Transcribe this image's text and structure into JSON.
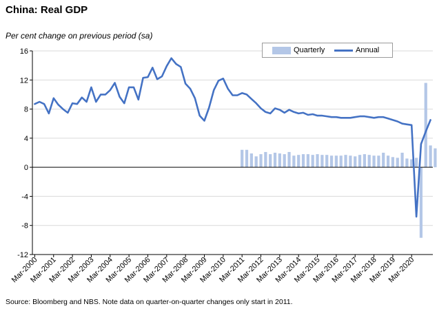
{
  "title": "China: Real GDP",
  "subtitle": "Per cent change on previous period (sa)",
  "source": "Source: Bloomberg and NBS.  Note data on quarter-on-quarter changes only start in 2011.",
  "colors": {
    "annual": "#4472c4",
    "quarterly": "#b4c7e7",
    "grid": "#d9d9d9",
    "axis": "#000000"
  },
  "chart_data": {
    "type": "bar+line",
    "ylim": [
      -12,
      16
    ],
    "yticks": [
      16,
      12,
      8,
      4,
      0,
      -4,
      -8,
      -12
    ],
    "x_start_year": 2000,
    "x_tick_labels": [
      "Mar-2000",
      "Mar-2001",
      "Mar-2002",
      "Mar-2003",
      "Mar-2004",
      "Mar-2005",
      "Mar-2006",
      "Mar-2007",
      "Mar-2008",
      "Mar-2009",
      "Mar-2010",
      "Mar-2011",
      "Mar-2012",
      "Mar-2013",
      "Mar-2014",
      "Mar-2015",
      "Mar-2016",
      "Mar-2017",
      "Mar-2018",
      "Mar-2019",
      "Mar-2020"
    ],
    "grid": true,
    "legend_position": "top-right",
    "series": [
      {
        "name": "Quarterly",
        "type": "bar",
        "start": "Mar-2011",
        "values": [
          2.4,
          2.4,
          1.9,
          1.5,
          1.8,
          2.1,
          1.8,
          2.0,
          1.9,
          1.8,
          2.1,
          1.6,
          1.7,
          1.8,
          1.8,
          1.7,
          1.8,
          1.7,
          1.7,
          1.6,
          1.6,
          1.6,
          1.7,
          1.6,
          1.5,
          1.7,
          1.8,
          1.7,
          1.6,
          1.6,
          2.0,
          1.6,
          1.4,
          1.3,
          2.0,
          1.2,
          1.1,
          1.3,
          -9.7,
          11.6,
          3.0,
          2.6
        ]
      },
      {
        "name": "Annual",
        "type": "line",
        "start": "Mar-2000",
        "values": [
          8.7,
          9.0,
          8.7,
          7.4,
          9.5,
          8.6,
          8.0,
          7.5,
          8.8,
          8.7,
          9.6,
          9.0,
          11.0,
          9.0,
          10.0,
          10.0,
          10.6,
          11.6,
          9.7,
          8.8,
          11.0,
          11.0,
          9.3,
          12.3,
          12.4,
          13.7,
          12.1,
          12.5,
          13.9,
          15.0,
          14.2,
          13.8,
          11.5,
          10.8,
          9.5,
          7.1,
          6.4,
          8.2,
          10.6,
          11.9,
          12.2,
          10.8,
          9.9,
          9.9,
          10.2,
          10.0,
          9.4,
          8.8,
          8.1,
          7.6,
          7.4,
          8.1,
          7.9,
          7.5,
          7.9,
          7.6,
          7.4,
          7.5,
          7.2,
          7.3,
          7.1,
          7.1,
          7.0,
          6.9,
          6.9,
          6.8,
          6.8,
          6.8,
          6.9,
          7.0,
          7.0,
          6.9,
          6.8,
          6.9,
          6.9,
          6.7,
          6.5,
          6.3,
          6.0,
          5.9,
          5.8,
          -6.8,
          3.2,
          4.9,
          6.5
        ]
      }
    ]
  }
}
